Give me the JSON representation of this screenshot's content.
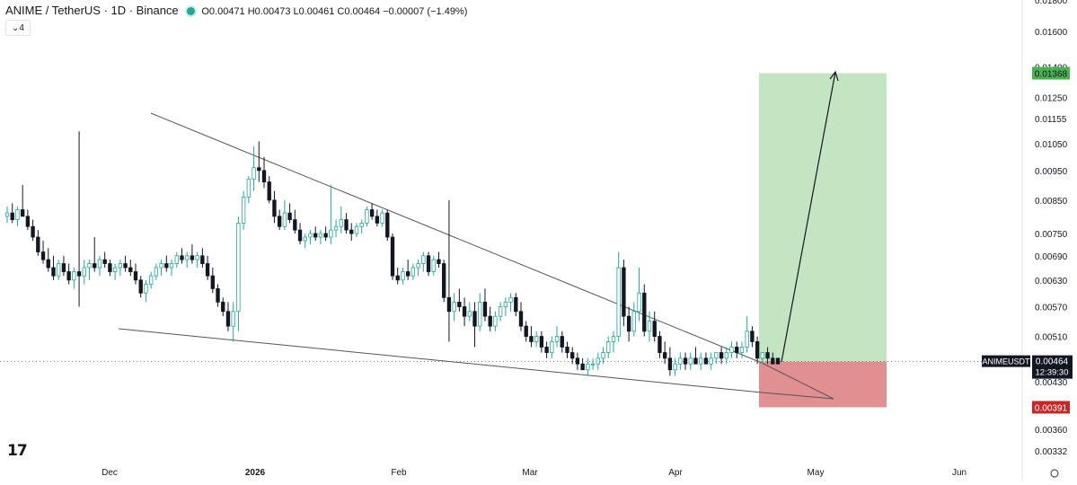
{
  "header": {
    "symbol": "ANIME / TetherUS · 1D · Binance",
    "ohlc": "O0.00471 H0.00473 L0.00461 C0.00464 −0.00007 (−1.49%)",
    "indicator_chip": "4",
    "chevron_icon": "chevron-down-icon"
  },
  "logo_text": "17",
  "colors": {
    "up": "#26a69a",
    "down": "#131722",
    "target_zone": "#c3e5c2",
    "stop_zone": "#e09090",
    "target_label": "#4caf50",
    "stop_label": "#c62828",
    "trendline": "#555555"
  },
  "price_badge": {
    "symbol": "ANIMEUSDT",
    "price": "0.00464",
    "countdown": "12:39:30"
  },
  "target_label": "0.01368",
  "stop_label": "0.00391",
  "chart_data": {
    "type": "candlestick",
    "title": "ANIME / TetherUS · 1D · Binance",
    "y_axis_scale": "log",
    "y_ticks": [
      "0.01800",
      "0.01600",
      "0.01400",
      "0.01250",
      "0.01155",
      "0.01050",
      "0.00950",
      "0.00850",
      "0.00750",
      "0.00690",
      "0.00630",
      "0.00570",
      "0.00510",
      "0.00430",
      "0.00360",
      "0.00332"
    ],
    "x_ticks": [
      "Dec",
      "2026",
      "Feb",
      "Mar",
      "Apr",
      "May",
      "Jun"
    ],
    "last_price": 0.00464,
    "candles": [
      [
        0.008,
        0.0083,
        0.0078,
        0.0081
      ],
      [
        0.0081,
        0.0084,
        0.0078,
        0.0079
      ],
      [
        0.0079,
        0.0083,
        0.0077,
        0.0082
      ],
      [
        0.0082,
        0.009,
        0.008,
        0.008
      ],
      [
        0.008,
        0.0082,
        0.0076,
        0.0077
      ],
      [
        0.0077,
        0.0079,
        0.0073,
        0.0074
      ],
      [
        0.0074,
        0.0076,
        0.0069,
        0.007
      ],
      [
        0.007,
        0.0073,
        0.0067,
        0.0068
      ],
      [
        0.0068,
        0.0071,
        0.0065,
        0.0066
      ],
      [
        0.0066,
        0.0069,
        0.0063,
        0.0064
      ],
      [
        0.0064,
        0.0068,
        0.0063,
        0.0067
      ],
      [
        0.0067,
        0.0069,
        0.0064,
        0.0065
      ],
      [
        0.0065,
        0.0067,
        0.0062,
        0.0063
      ],
      [
        0.0063,
        0.0066,
        0.0061,
        0.0065
      ],
      [
        0.0065,
        0.011,
        0.0057,
        0.0064
      ],
      [
        0.0064,
        0.0068,
        0.0062,
        0.0066
      ],
      [
        0.0066,
        0.0068,
        0.0063,
        0.0067
      ],
      [
        0.0067,
        0.0074,
        0.0065,
        0.0066
      ],
      [
        0.0066,
        0.0069,
        0.0064,
        0.0068
      ],
      [
        0.0068,
        0.007,
        0.0066,
        0.0067
      ],
      [
        0.0067,
        0.0068,
        0.0064,
        0.0065
      ],
      [
        0.0065,
        0.0067,
        0.0063,
        0.0066
      ],
      [
        0.0066,
        0.0068,
        0.0064,
        0.0067
      ],
      [
        0.0067,
        0.0069,
        0.0065,
        0.0066
      ],
      [
        0.0066,
        0.0068,
        0.0064,
        0.0065
      ],
      [
        0.0065,
        0.0067,
        0.0062,
        0.0063
      ],
      [
        0.0063,
        0.0064,
        0.0059,
        0.006
      ],
      [
        0.006,
        0.0063,
        0.0058,
        0.0062
      ],
      [
        0.0062,
        0.0065,
        0.0061,
        0.0064
      ],
      [
        0.0064,
        0.0067,
        0.0063,
        0.0066
      ],
      [
        0.0066,
        0.0068,
        0.0064,
        0.0067
      ],
      [
        0.0067,
        0.0069,
        0.0065,
        0.0066
      ],
      [
        0.0066,
        0.0068,
        0.0064,
        0.0067
      ],
      [
        0.0067,
        0.007,
        0.0066,
        0.0069
      ],
      [
        0.0069,
        0.0071,
        0.0067,
        0.0068
      ],
      [
        0.0068,
        0.007,
        0.0066,
        0.0069
      ],
      [
        0.0069,
        0.0072,
        0.0067,
        0.0068
      ],
      [
        0.0068,
        0.007,
        0.0066,
        0.0069
      ],
      [
        0.0069,
        0.0071,
        0.0066,
        0.0067
      ],
      [
        0.0067,
        0.0069,
        0.0063,
        0.0064
      ],
      [
        0.0064,
        0.0066,
        0.006,
        0.0061
      ],
      [
        0.0061,
        0.0062,
        0.0057,
        0.0058
      ],
      [
        0.0058,
        0.0059,
        0.0055,
        0.0056
      ],
      [
        0.0056,
        0.0058,
        0.0052,
        0.0053
      ],
      [
        0.0053,
        0.0058,
        0.005,
        0.0056
      ],
      [
        0.0056,
        0.008,
        0.0052,
        0.0078
      ],
      [
        0.0078,
        0.0088,
        0.0076,
        0.0086
      ],
      [
        0.0086,
        0.0093,
        0.0084,
        0.0092
      ],
      [
        0.0092,
        0.0104,
        0.0088,
        0.0096
      ],
      [
        0.0096,
        0.0106,
        0.0091,
        0.0095
      ],
      [
        0.0095,
        0.01,
        0.0089,
        0.0091
      ],
      [
        0.0091,
        0.0093,
        0.0084,
        0.0085
      ],
      [
        0.0085,
        0.0088,
        0.0078,
        0.008
      ],
      [
        0.008,
        0.0082,
        0.0076,
        0.0077
      ],
      [
        0.0077,
        0.0085,
        0.0076,
        0.0081
      ],
      [
        0.0081,
        0.0084,
        0.0078,
        0.0079
      ],
      [
        0.0079,
        0.0082,
        0.0075,
        0.0076
      ],
      [
        0.0076,
        0.0078,
        0.0072,
        0.0073
      ],
      [
        0.0073,
        0.0075,
        0.0071,
        0.0074
      ],
      [
        0.0074,
        0.0076,
        0.0072,
        0.0075
      ],
      [
        0.0075,
        0.0077,
        0.0073,
        0.0074
      ],
      [
        0.0074,
        0.0076,
        0.0072,
        0.0075
      ],
      [
        0.0075,
        0.0077,
        0.0073,
        0.0074
      ],
      [
        0.0074,
        0.009,
        0.0072,
        0.0076
      ],
      [
        0.0076,
        0.0079,
        0.0074,
        0.0077
      ],
      [
        0.0077,
        0.0083,
        0.0075,
        0.0079
      ],
      [
        0.0079,
        0.0081,
        0.0075,
        0.0076
      ],
      [
        0.0076,
        0.0078,
        0.0073,
        0.0075
      ],
      [
        0.0075,
        0.0078,
        0.0074,
        0.0077
      ],
      [
        0.0077,
        0.0079,
        0.0075,
        0.0078
      ],
      [
        0.0078,
        0.0083,
        0.0077,
        0.0082
      ],
      [
        0.0082,
        0.0084,
        0.0079,
        0.008
      ],
      [
        0.008,
        0.0082,
        0.0077,
        0.0078
      ],
      [
        0.0078,
        0.0082,
        0.0077,
        0.0081
      ],
      [
        0.0081,
        0.0082,
        0.0073,
        0.0074
      ],
      [
        0.0074,
        0.0075,
        0.0063,
        0.0064
      ],
      [
        0.0064,
        0.0066,
        0.0062,
        0.0063
      ],
      [
        0.0063,
        0.0066,
        0.0062,
        0.0065
      ],
      [
        0.0065,
        0.0068,
        0.0063,
        0.0064
      ],
      [
        0.0064,
        0.0067,
        0.0063,
        0.0066
      ],
      [
        0.0066,
        0.0068,
        0.0064,
        0.0067
      ],
      [
        0.0067,
        0.007,
        0.0065,
        0.0069
      ],
      [
        0.0069,
        0.007,
        0.0064,
        0.0065
      ],
      [
        0.0065,
        0.0069,
        0.0064,
        0.0068
      ],
      [
        0.0068,
        0.007,
        0.0066,
        0.0067
      ],
      [
        0.0067,
        0.0068,
        0.0058,
        0.0059
      ],
      [
        0.0059,
        0.0085,
        0.005,
        0.0056
      ],
      [
        0.0056,
        0.006,
        0.0054,
        0.0058
      ],
      [
        0.0058,
        0.0061,
        0.0056,
        0.0057
      ],
      [
        0.0057,
        0.0059,
        0.0053,
        0.0055
      ],
      [
        0.0055,
        0.0058,
        0.0054,
        0.0056
      ],
      [
        0.0056,
        0.0058,
        0.0049,
        0.0053
      ],
      [
        0.0053,
        0.006,
        0.0052,
        0.0058
      ],
      [
        0.0058,
        0.0061,
        0.0054,
        0.0055
      ],
      [
        0.0055,
        0.0057,
        0.0052,
        0.0053
      ],
      [
        0.0053,
        0.0056,
        0.0052,
        0.0055
      ],
      [
        0.0055,
        0.0058,
        0.0054,
        0.0057
      ],
      [
        0.0057,
        0.0059,
        0.0055,
        0.0058
      ],
      [
        0.0058,
        0.006,
        0.0056,
        0.0059
      ],
      [
        0.0059,
        0.006,
        0.0055,
        0.0056
      ],
      [
        0.0056,
        0.0058,
        0.0052,
        0.0053
      ],
      [
        0.0053,
        0.0054,
        0.005,
        0.0051
      ],
      [
        0.0051,
        0.0053,
        0.0049,
        0.005
      ],
      [
        0.005,
        0.0052,
        0.0049,
        0.0051
      ],
      [
        0.0051,
        0.0052,
        0.0048,
        0.0049
      ],
      [
        0.0049,
        0.005,
        0.0047,
        0.0048
      ],
      [
        0.0048,
        0.0051,
        0.0047,
        0.005
      ],
      [
        0.005,
        0.0053,
        0.0049,
        0.0051
      ],
      [
        0.0051,
        0.0052,
        0.0048,
        0.0049
      ],
      [
        0.0049,
        0.005,
        0.0047,
        0.0048
      ],
      [
        0.0048,
        0.0049,
        0.0046,
        0.0047
      ],
      [
        0.0047,
        0.0048,
        0.0045,
        0.0046
      ],
      [
        0.0046,
        0.0047,
        0.0045,
        0.0045
      ],
      [
        0.0045,
        0.0047,
        0.0044,
        0.0046
      ],
      [
        0.0046,
        0.0047,
        0.0045,
        0.0046
      ],
      [
        0.0046,
        0.0048,
        0.0045,
        0.0047
      ],
      [
        0.0047,
        0.0049,
        0.0046,
        0.0048
      ],
      [
        0.0048,
        0.0051,
        0.0047,
        0.005
      ],
      [
        0.005,
        0.0052,
        0.0048,
        0.0051
      ],
      [
        0.0051,
        0.007,
        0.005,
        0.0066
      ],
      [
        0.0066,
        0.0068,
        0.0053,
        0.0055
      ],
      [
        0.0055,
        0.0057,
        0.005,
        0.0052
      ],
      [
        0.0052,
        0.0058,
        0.0051,
        0.0056
      ],
      [
        0.0056,
        0.0066,
        0.0054,
        0.006
      ],
      [
        0.006,
        0.0062,
        0.0051,
        0.0052
      ],
      [
        0.0052,
        0.0056,
        0.005,
        0.0054
      ],
      [
        0.0054,
        0.0056,
        0.005,
        0.0051
      ],
      [
        0.0051,
        0.0052,
        0.0047,
        0.0048
      ],
      [
        0.0048,
        0.005,
        0.0046,
        0.0047
      ],
      [
        0.0047,
        0.0049,
        0.0044,
        0.0045
      ],
      [
        0.0045,
        0.0047,
        0.0044,
        0.0046
      ],
      [
        0.0046,
        0.0048,
        0.0045,
        0.0047
      ],
      [
        0.0047,
        0.0048,
        0.0045,
        0.0046
      ],
      [
        0.0046,
        0.0048,
        0.0045,
        0.0047
      ],
      [
        0.0047,
        0.0049,
        0.0046,
        0.0046
      ],
      [
        0.0046,
        0.0048,
        0.0045,
        0.0047
      ],
      [
        0.0047,
        0.0048,
        0.0046,
        0.0046
      ],
      [
        0.0046,
        0.0048,
        0.0045,
        0.0047
      ],
      [
        0.0047,
        0.0048,
        0.0046,
        0.0048
      ],
      [
        0.0048,
        0.0049,
        0.0046,
        0.0047
      ],
      [
        0.0047,
        0.0049,
        0.0046,
        0.0048
      ],
      [
        0.0048,
        0.005,
        0.0047,
        0.0049
      ],
      [
        0.0049,
        0.005,
        0.0047,
        0.0048
      ],
      [
        0.0048,
        0.005,
        0.0047,
        0.0049
      ],
      [
        0.0049,
        0.0055,
        0.0048,
        0.0052
      ],
      [
        0.0052,
        0.0053,
        0.0049,
        0.005
      ],
      [
        0.005,
        0.0051,
        0.0046,
        0.0047
      ],
      [
        0.0047,
        0.0048,
        0.0046,
        0.0048
      ],
      [
        0.0048,
        0.0049,
        0.0046,
        0.0047
      ],
      [
        0.0047,
        0.0048,
        0.0046,
        0.0046
      ],
      [
        0.0047,
        0.0047,
        0.0046,
        0.0046
      ]
    ]
  }
}
